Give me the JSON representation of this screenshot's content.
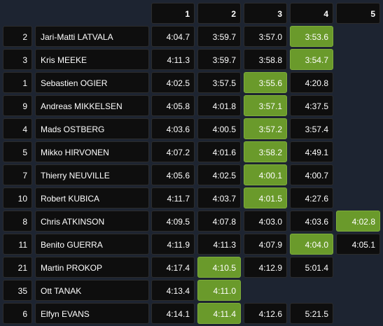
{
  "table": {
    "columns": [
      "1",
      "2",
      "3",
      "4",
      "5"
    ],
    "rows": [
      {
        "pos": "2",
        "driver": "Jari-Matti LATVALA",
        "times": [
          "4:04.7",
          "3:59.7",
          "3:57.0",
          "3:53.6",
          null
        ],
        "best": 3
      },
      {
        "pos": "3",
        "driver": "Kris MEEKE",
        "times": [
          "4:11.3",
          "3:59.7",
          "3:58.8",
          "3:54.7",
          null
        ],
        "best": 3
      },
      {
        "pos": "1",
        "driver": "Sebastien OGIER",
        "times": [
          "4:02.5",
          "3:57.5",
          "3:55.6",
          "4:20.8",
          null
        ],
        "best": 2
      },
      {
        "pos": "9",
        "driver": "Andreas MIKKELSEN",
        "times": [
          "4:05.8",
          "4:01.8",
          "3:57.1",
          "4:37.5",
          null
        ],
        "best": 2
      },
      {
        "pos": "4",
        "driver": "Mads OSTBERG",
        "times": [
          "4:03.6",
          "4:00.5",
          "3:57.2",
          "3:57.4",
          null
        ],
        "best": 2
      },
      {
        "pos": "5",
        "driver": "Mikko HIRVONEN",
        "times": [
          "4:07.2",
          "4:01.6",
          "3:58.2",
          "4:49.1",
          null
        ],
        "best": 2
      },
      {
        "pos": "7",
        "driver": "Thierry NEUVILLE",
        "times": [
          "4:05.6",
          "4:02.5",
          "4:00.1",
          "4:00.7",
          null
        ],
        "best": 2
      },
      {
        "pos": "10",
        "driver": "Robert KUBICA",
        "times": [
          "4:11.7",
          "4:03.7",
          "4:01.5",
          "4:27.6",
          null
        ],
        "best": 2
      },
      {
        "pos": "8",
        "driver": "Chris ATKINSON",
        "times": [
          "4:09.5",
          "4:07.8",
          "4:03.0",
          "4:03.6",
          "4:02.8"
        ],
        "best": 4
      },
      {
        "pos": "11",
        "driver": "Benito GUERRA",
        "times": [
          "4:11.9",
          "4:11.3",
          "4:07.9",
          "4:04.0",
          "4:05.1"
        ],
        "best": 3
      },
      {
        "pos": "21",
        "driver": "Martin PROKOP",
        "times": [
          "4:17.4",
          "4:10.5",
          "4:12.9",
          "5:01.4",
          null
        ],
        "best": 1
      },
      {
        "pos": "35",
        "driver": "Ott TANAK",
        "times": [
          "4:13.4",
          "4:11.0",
          null,
          null,
          null
        ],
        "best": 1
      },
      {
        "pos": "6",
        "driver": "Elfyn EVANS",
        "times": [
          "4:14.1",
          "4:11.4",
          "4:12.6",
          "5:21.5",
          null
        ],
        "best": 1
      }
    ]
  }
}
